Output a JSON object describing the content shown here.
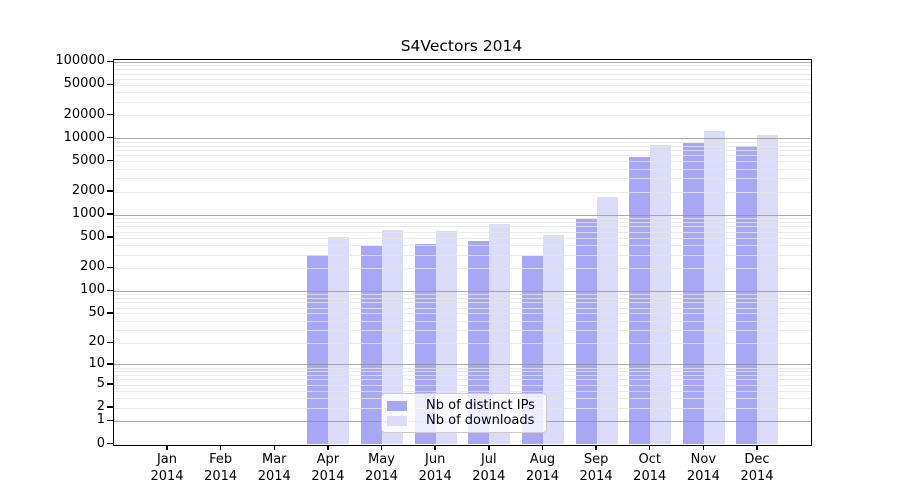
{
  "figure": {
    "title": "S4Vectors 2014"
  },
  "chart_data": {
    "type": "bar",
    "title": "S4Vectors 2014",
    "year": "2014",
    "categories": [
      "Jan",
      "Feb",
      "Mar",
      "Apr",
      "May",
      "Jun",
      "Jul",
      "Aug",
      "Sep",
      "Oct",
      "Nov",
      "Dec"
    ],
    "series": [
      {
        "name": "Nb of distinct IPs",
        "color": "#a7a7f6",
        "values": [
          0,
          0,
          0,
          300,
          390,
          415,
          455,
          295,
          880,
          5750,
          8800,
          8000
        ]
      },
      {
        "name": "Nb of downloads",
        "color": "#dbdbfa",
        "values": [
          0,
          0,
          0,
          510,
          645,
          620,
          775,
          545,
          1710,
          8300,
          12700,
          11100
        ]
      }
    ],
    "xlabel": "",
    "ylabel": "",
    "yscale": "log10(value+1)",
    "ylim": [
      0,
      100000
    ],
    "ytick_values": [
      0,
      1,
      2,
      5,
      10,
      20,
      50,
      100,
      200,
      500,
      1000,
      2000,
      5000,
      10000,
      20000,
      50000,
      100000
    ],
    "ytick_labels": [
      "0",
      "1",
      "2",
      "5",
      "10",
      "20",
      "50",
      "100",
      "200",
      "500",
      "1000",
      "2000",
      "5000",
      "10000",
      "20000",
      "50000",
      "100000"
    ],
    "grid": "horizontal minor lines at 2-9 of each decade, darker lines at powers of 10",
    "legend_position": "inside bottom-center",
    "bar_color_minor_gridline": "#e4e4e4",
    "bar_color_decade_gridline": "#949494"
  }
}
